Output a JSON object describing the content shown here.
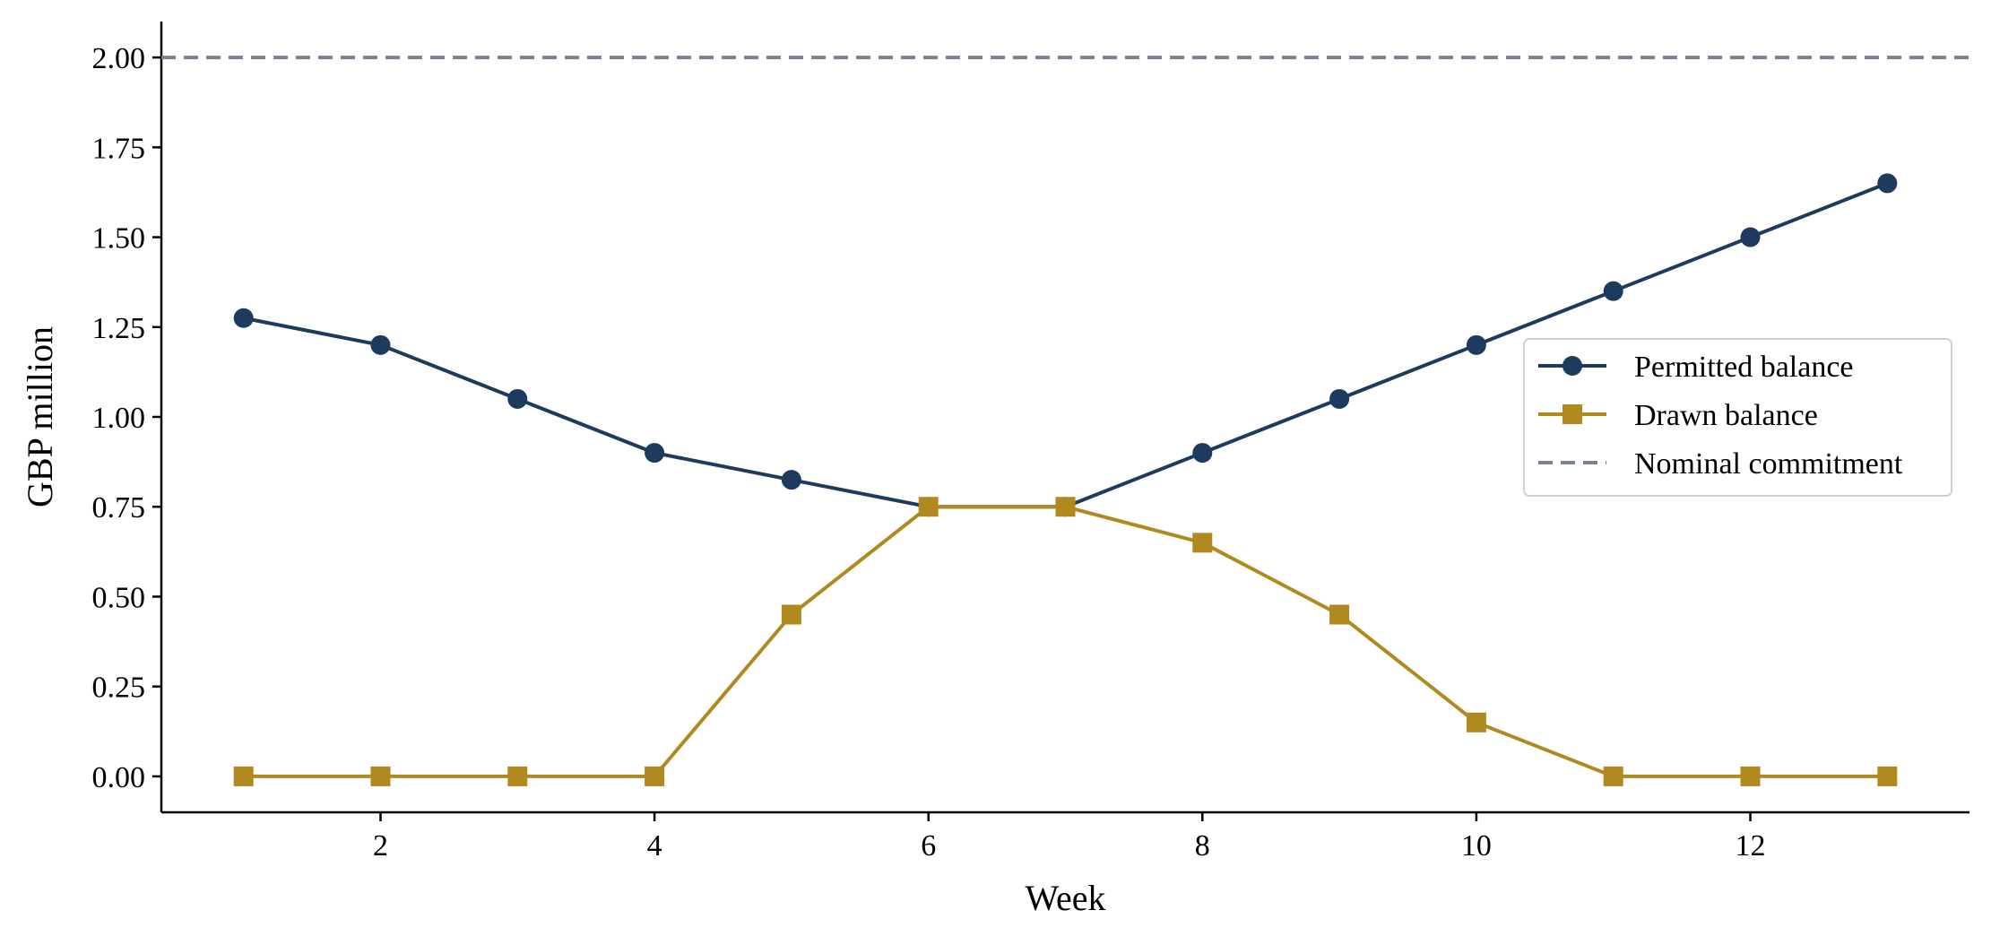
{
  "chart_data": {
    "type": "line",
    "title": "",
    "xlabel": "Week",
    "ylabel": "GBP million",
    "x": [
      1,
      2,
      3,
      4,
      5,
      6,
      7,
      8,
      9,
      10,
      11,
      12,
      13
    ],
    "xlim": [
      0.4,
      13.6
    ],
    "ylim": [
      -0.1,
      2.1
    ],
    "xticks": [
      2,
      4,
      6,
      8,
      10,
      12
    ],
    "xtick_labels": [
      "2",
      "4",
      "6",
      "8",
      "10",
      "12"
    ],
    "yticks": [
      0,
      0.25,
      0.5,
      0.75,
      1.0,
      1.25,
      1.5,
      1.75,
      2.0
    ],
    "ytick_labels": [
      "0.00",
      "0.25",
      "0.50",
      "0.75",
      "1.00",
      "1.25",
      "1.50",
      "1.75",
      "2.00"
    ],
    "grid": false,
    "legend_position": "center-right",
    "series": [
      {
        "name": "Permitted balance",
        "marker": "circle",
        "color": "#1f3a5f",
        "values": [
          1.275,
          1.2,
          1.05,
          0.9,
          0.825,
          0.75,
          0.75,
          0.9,
          1.05,
          1.2,
          1.35,
          1.5,
          1.65
        ]
      },
      {
        "name": "Drawn balance",
        "marker": "square",
        "color": "#b08a1e",
        "values": [
          0.0,
          0.0,
          0.0,
          0.0,
          0.45,
          0.75,
          0.75,
          0.65,
          0.45,
          0.15,
          0.0,
          0.0,
          0.0
        ]
      }
    ],
    "reference_lines": [
      {
        "name": "Nominal commitment",
        "orientation": "horizontal",
        "value": 2.0,
        "style": "dashed",
        "color": "#7a8394"
      }
    ]
  }
}
